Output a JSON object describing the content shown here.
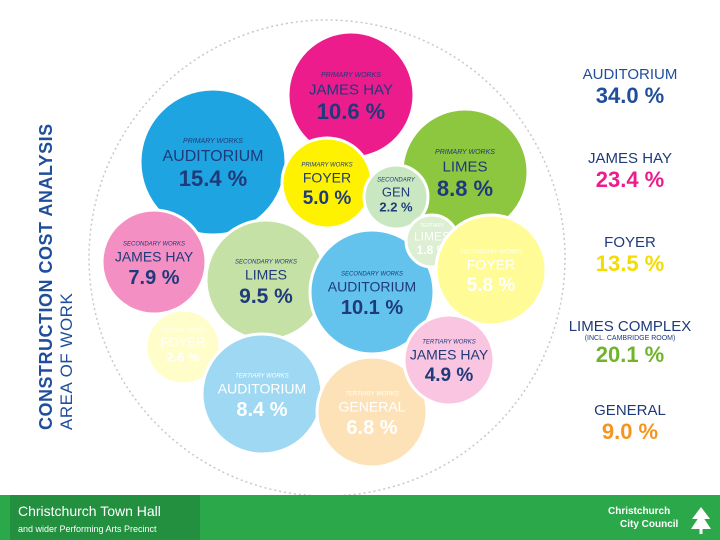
{
  "side_title": {
    "line1": "CONSTRUCTION COST ANALYSIS",
    "line2": "AREA OF WORK"
  },
  "bubbles": [
    {
      "id": "auditorium-primary",
      "color": "#1ea4e0",
      "category": "PRIMARY WORKS",
      "name": "AUDITORIUM",
      "value": "15.4 %",
      "text_color": "#1f3a7a"
    },
    {
      "id": "james-hay-primary",
      "color": "#ec1c8d",
      "category": "PRIMARY WORKS",
      "name": "JAMES HAY",
      "value": "10.6 %",
      "text_color": "#1f3a7a"
    },
    {
      "id": "limes-primary",
      "color": "#8dc63f",
      "category": "PRIMARY WORKS",
      "name": "LIMES",
      "value": "8.8 %",
      "text_color": "#1f3a7a"
    },
    {
      "id": "foyer-primary",
      "color": "#fff200",
      "category": "PRIMARY WORKS",
      "name": "FOYER",
      "value": "5.0 %",
      "text_color": "#1f3a7a"
    },
    {
      "id": "gen-secondary",
      "color": "#c9e8c2",
      "category": "SECONDARY",
      "name": "GEN",
      "value": "2.2 %",
      "text_color": "#1f3a7a"
    },
    {
      "id": "james-hay-secondary",
      "color": "#f48fc4",
      "category": "SECONDARY WORKS",
      "name": "JAMES HAY",
      "value": "7.9 %",
      "text_color": "#1f3a7a"
    },
    {
      "id": "limes-secondary",
      "color": "#c5e1a5",
      "category": "SECONDARY WORKS",
      "name": "LIMES",
      "value": "9.5 %",
      "text_color": "#1f3a7a"
    },
    {
      "id": "auditorium-secondary",
      "color": "#63c3ec",
      "category": "SECONDARY WORKS",
      "name": "AUDITORIUM",
      "value": "10.1 %",
      "text_color": "#1f3a7a"
    },
    {
      "id": "limes-tertiary",
      "color": "#dcefd2",
      "category": "TERTIARY",
      "name": "LIMES",
      "value": "1.8 %",
      "text_color": "#ffffff"
    },
    {
      "id": "foyer-secondary",
      "color": "#fffb96",
      "category": "SECONDARY WORKS",
      "name": "FOYER",
      "value": "5.8 %",
      "text_color": "#ffffff"
    },
    {
      "id": "foyer-tertiary",
      "color": "#fffdc9",
      "category": "TERTIARY WORKS",
      "name": "FOYER",
      "value": "2.6 %",
      "text_color": "#ffffff"
    },
    {
      "id": "auditorium-tertiary",
      "color": "#9fd8f3",
      "category": "TERTIARY WORKS",
      "name": "AUDITORIUM",
      "value": "8.4 %",
      "text_color": "#ffffff"
    },
    {
      "id": "general-tertiary",
      "color": "#fde2b8",
      "category": "TERTIARY WORKS",
      "name": "GENERAL",
      "value": "6.8 %",
      "text_color": "#ffffff"
    },
    {
      "id": "james-hay-tertiary",
      "color": "#f9c5e0",
      "category": "TERTIARY WORKS",
      "name": "JAMES HAY",
      "value": "4.9 %",
      "text_color": "#1f3a7a"
    }
  ],
  "legend": [
    {
      "id": "auditorium",
      "name": "AUDITORIUM",
      "sub": "",
      "value": "34.0 %",
      "name_color": "#1f4e9c",
      "value_color": "#1f4e9c"
    },
    {
      "id": "james-hay",
      "name": "JAMES HAY",
      "sub": "",
      "value": "23.4 %",
      "name_color": "#1f3a7a",
      "value_color": "#ec1c8d"
    },
    {
      "id": "foyer",
      "name": "FOYER",
      "sub": "",
      "value": "13.5 %",
      "name_color": "#1f3a7a",
      "value_color": "#f3dc00"
    },
    {
      "id": "limes-complex",
      "name": "LIMES COMPLEX",
      "sub": "(INCL. CAMBRIDGE ROOM)",
      "value": "20.1 %",
      "name_color": "#1f3a7a",
      "value_color": "#6fb52c"
    },
    {
      "id": "general",
      "name": "GENERAL",
      "sub": "",
      "value": "9.0 %",
      "name_color": "#1f3a7a",
      "value_color": "#f7941d"
    }
  ],
  "footer": {
    "title": "Christchurch Town Hall",
    "subtitle": "and wider Performing Arts Precinct",
    "logo_line1": "Christchurch",
    "logo_line2": "City Council"
  }
}
